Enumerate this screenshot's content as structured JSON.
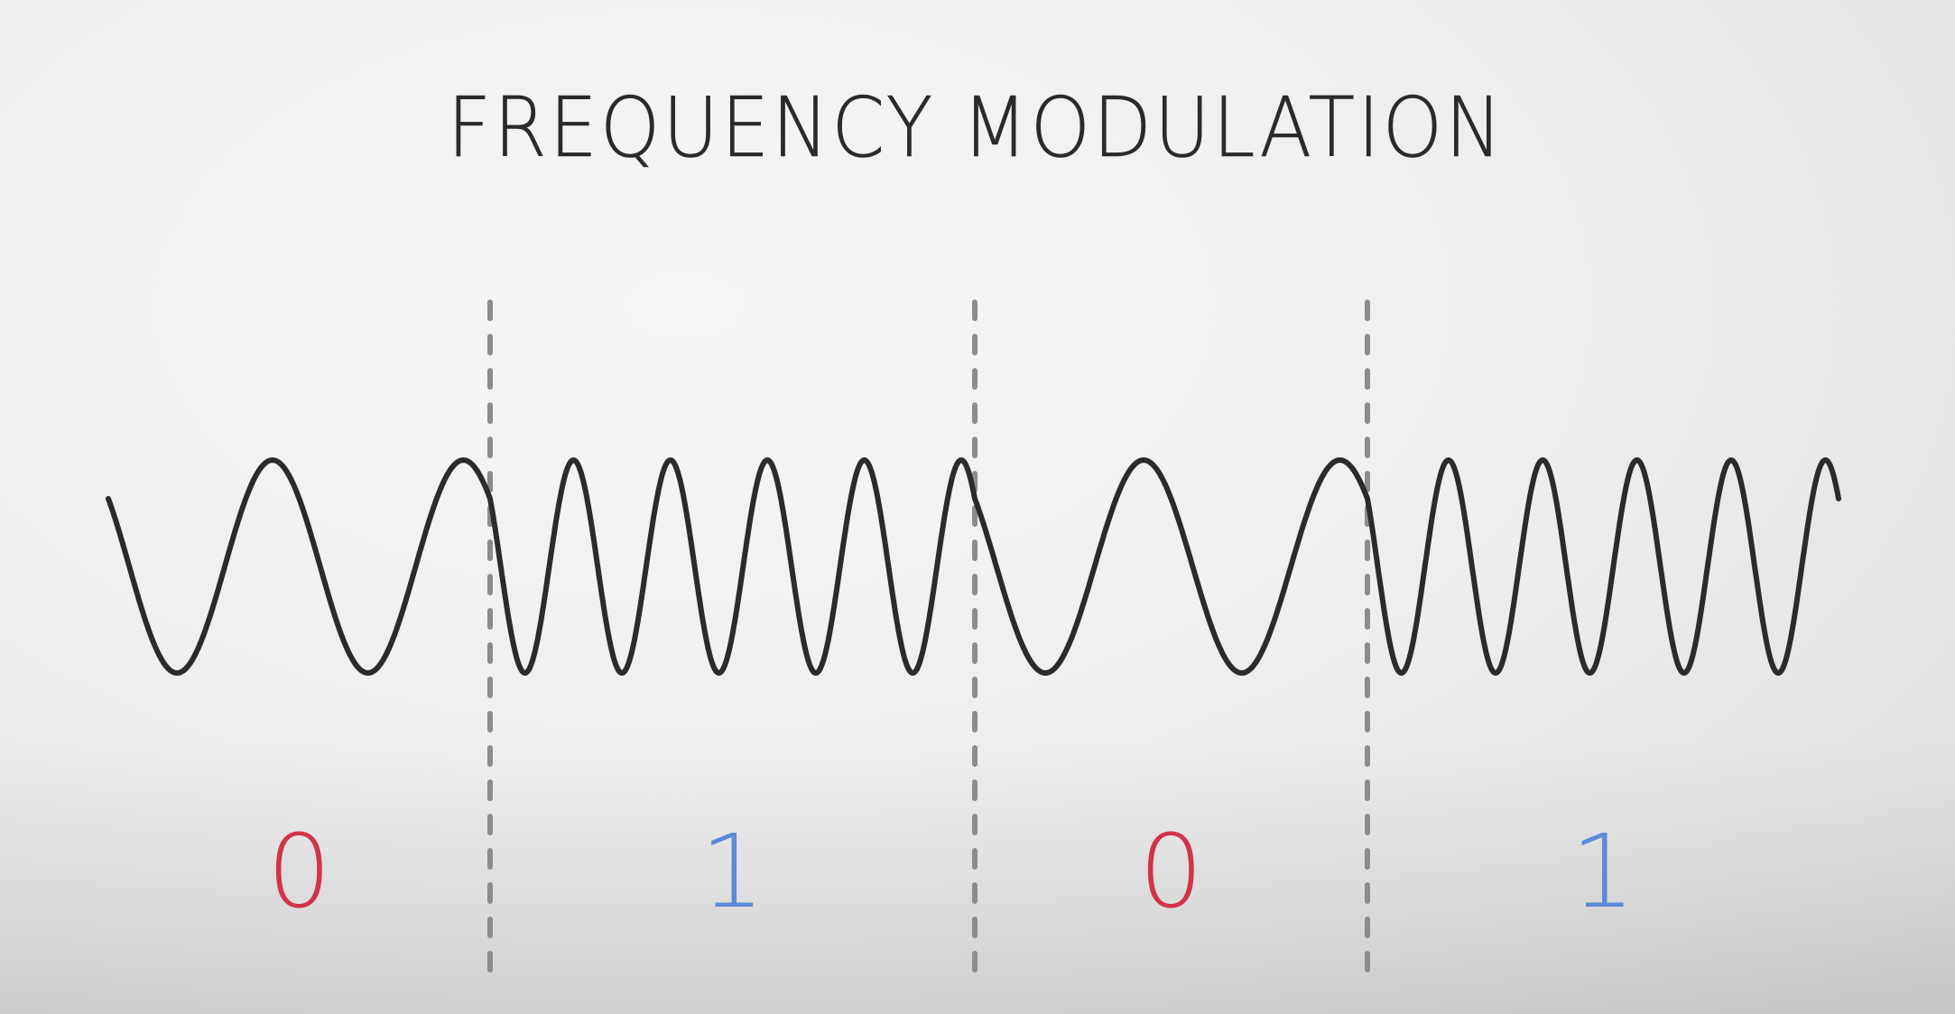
{
  "title": "FREQUENCY MODULATION",
  "colors": {
    "wave": "#2b2b2b",
    "divider": "#8c8c8c",
    "bit_zero": "#d0334a",
    "bit_one": "#5b8ad6"
  },
  "segments": [
    {
      "bit": "0",
      "cycles": 2,
      "color_key": "bit_zero"
    },
    {
      "bit": "1",
      "cycles": 5,
      "color_key": "bit_one"
    },
    {
      "bit": "0",
      "cycles": 2,
      "color_key": "bit_zero"
    },
    {
      "bit": "1",
      "cycles": 5,
      "color_key": "bit_one"
    }
  ]
}
